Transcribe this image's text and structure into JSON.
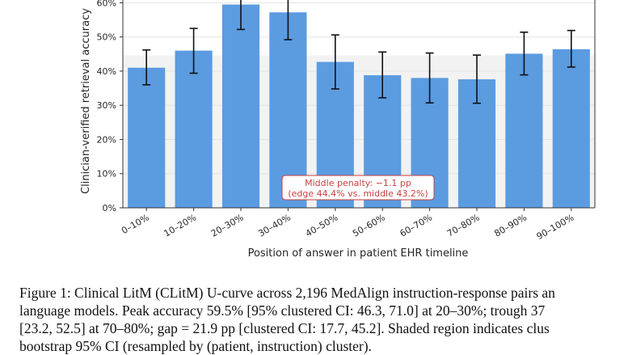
{
  "chart_data": {
    "type": "bar",
    "categories": [
      "0–10%",
      "10–20%",
      "20–30%",
      "30–40%",
      "40–50%",
      "50–60%",
      "60–70%",
      "70–80%",
      "80–90%",
      "90–100%"
    ],
    "values": [
      41.0,
      46.0,
      59.5,
      57.2,
      42.7,
      38.8,
      38.0,
      37.6,
      45.1,
      46.4
    ],
    "error_low": [
      36.0,
      39.4,
      52.2,
      49.2,
      34.8,
      32.2,
      30.7,
      30.6,
      38.9,
      41.2
    ],
    "error_high": [
      46.2,
      52.5,
      64.3,
      62.3,
      50.6,
      45.6,
      45.3,
      44.7,
      51.4,
      51.9
    ],
    "ylabel": "Clinician-verified retrieval accuracy",
    "xlabel": "Position of answer in patient EHR timeline",
    "yticks": [
      "0%",
      "10%",
      "20%",
      "30%",
      "40%",
      "50%",
      "60%"
    ],
    "ylim": [
      0,
      62
    ],
    "shaded_band": [
      0,
      44.6
    ],
    "grid": true,
    "bar_color": "#5b9be0",
    "band_color": "#f2f2f2",
    "annotation": {
      "line1": "Middle penalty: −1.1 pp",
      "line2": "(edge 44.4% vs. middle 43.2%)",
      "color": "#c84040"
    }
  },
  "caption": {
    "line1": "Figure 1: Clinical LitM (CLitM) U-curve across 2,196 MedAlign instruction-response pairs an",
    "line2": "language models. Peak accuracy 59.5% [95% clustered CI: 46.3, 71.0] at 20–30%; trough 37",
    "line3": "[23.2, 52.5] at 70–80%; gap = 21.9 pp [clustered CI: 17.7, 45.2]. Shaded region indicates clus",
    "line4": "bootstrap 95% CI (resampled by (patient, instruction) cluster)."
  }
}
